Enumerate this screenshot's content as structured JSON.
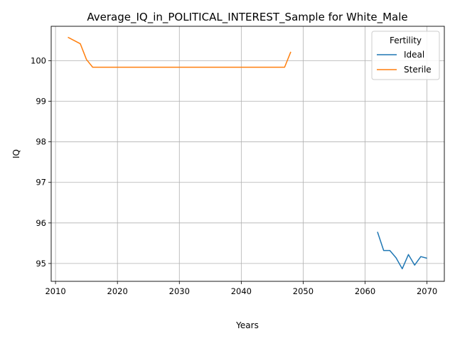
{
  "chart_data": {
    "type": "line",
    "title": "Average_IQ_in_POLITICAL_INTEREST_Sample for White_Male",
    "xlabel": "Years",
    "ylabel": "IQ",
    "xlim": [
      2009.3,
      2072.8
    ],
    "ylim": [
      94.56,
      100.85
    ],
    "x_ticks": [
      2010,
      2020,
      2030,
      2040,
      2050,
      2060,
      2070
    ],
    "y_ticks": [
      95,
      96,
      97,
      98,
      99,
      100
    ],
    "grid": true,
    "legend": {
      "title": "Fertility",
      "placement": "top-right"
    },
    "series": [
      {
        "name": "Ideal",
        "color": "#1f77b4",
        "x": [
          2062,
          2063,
          2064,
          2065,
          2066,
          2067,
          2068,
          2069,
          2070
        ],
        "y": [
          95.78,
          95.32,
          95.32,
          95.14,
          94.87,
          95.22,
          94.96,
          95.17,
          95.13
        ]
      },
      {
        "name": "Sterile",
        "color": "#ff7f0e",
        "x": [
          2012,
          2014,
          2015,
          2016,
          2020,
          2030,
          2040,
          2047,
          2048
        ],
        "y": [
          100.58,
          100.42,
          100.03,
          99.84,
          99.84,
          99.84,
          99.84,
          99.84,
          100.22
        ]
      }
    ]
  }
}
